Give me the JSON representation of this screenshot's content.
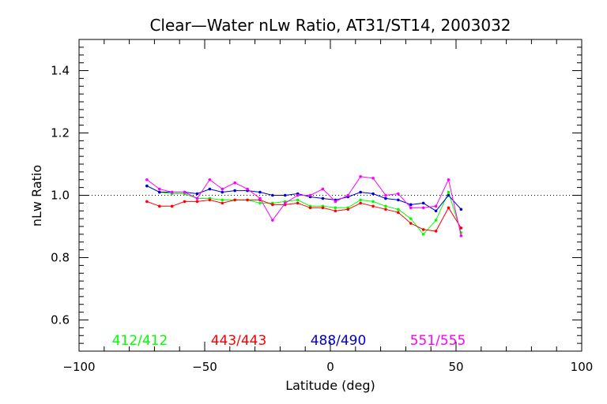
{
  "chart_data": {
    "type": "line",
    "title": "Clear—Water nLw Ratio, AT31/ST14, 2003032",
    "xlabel": "Latitude (deg)",
    "ylabel": "nLw Ratio",
    "xlim": [
      -100,
      100
    ],
    "ylim": [
      0.5,
      1.5
    ],
    "xticks": [
      -100,
      -50,
      0,
      50,
      100
    ],
    "yticks": [
      0.6,
      0.8,
      1.0,
      1.2,
      1.4
    ],
    "xtick_labels": [
      "−100",
      "−50",
      "0",
      "50",
      "100"
    ],
    "ytick_labels": [
      "0.6",
      "0.8",
      "1.0",
      "1.2",
      "1.4"
    ],
    "reference_line": {
      "y": 1.0,
      "style": "dotted"
    },
    "grid": false,
    "legend_placement": "bottom-inside",
    "series": [
      {
        "name": "412/412",
        "color": "#00ff00",
        "x": [
          -73,
          -68,
          -63,
          -58,
          -53,
          -48,
          -43,
          -38,
          -33,
          -28,
          -23,
          -18,
          -13,
          -8,
          -3,
          2,
          7,
          12,
          17,
          22,
          27,
          32,
          37,
          42,
          47,
          52
        ],
        "y": [
          1.03,
          1.01,
          1.005,
          1.005,
          0.99,
          0.99,
          0.985,
          0.985,
          0.985,
          0.975,
          0.975,
          0.98,
          0.985,
          0.965,
          0.965,
          0.96,
          0.96,
          0.985,
          0.98,
          0.965,
          0.955,
          0.925,
          0.875,
          0.92,
          1.01,
          0.88
        ]
      },
      {
        "name": "443/443",
        "color": "#ff0000",
        "x": [
          -73,
          -68,
          -63,
          -58,
          -53,
          -48,
          -43,
          -38,
          -33,
          -28,
          -23,
          -18,
          -13,
          -8,
          -3,
          2,
          7,
          12,
          17,
          22,
          27,
          32,
          37,
          42,
          47,
          52
        ],
        "y": [
          0.98,
          0.965,
          0.965,
          0.98,
          0.98,
          0.985,
          0.975,
          0.985,
          0.985,
          0.985,
          0.97,
          0.97,
          0.975,
          0.96,
          0.96,
          0.95,
          0.955,
          0.975,
          0.965,
          0.955,
          0.945,
          0.91,
          0.89,
          0.885,
          0.96,
          0.895
        ]
      },
      {
        "name": "488/490",
        "color": "#0000cc",
        "x": [
          -73,
          -68,
          -63,
          -58,
          -53,
          -48,
          -43,
          -38,
          -33,
          -28,
          -23,
          -18,
          -13,
          -8,
          -3,
          2,
          7,
          12,
          17,
          22,
          27,
          32,
          37,
          42,
          47,
          52
        ],
        "y": [
          1.03,
          1.01,
          1.01,
          1.01,
          1.005,
          1.02,
          1.01,
          1.015,
          1.015,
          1.01,
          1.0,
          1.0,
          1.005,
          0.995,
          0.99,
          0.985,
          0.995,
          1.01,
          1.005,
          0.99,
          0.985,
          0.97,
          0.975,
          0.95,
          1.0,
          0.955
        ]
      },
      {
        "name": "551/555",
        "color": "#ff00ff",
        "x": [
          -73,
          -68,
          -63,
          -58,
          -53,
          -48,
          -43,
          -38,
          -33,
          -28,
          -23,
          -18,
          -13,
          -8,
          -3,
          2,
          7,
          12,
          17,
          22,
          27,
          32,
          37,
          42,
          47,
          52
        ],
        "y": [
          1.05,
          1.02,
          1.01,
          1.01,
          0.99,
          1.05,
          1.02,
          1.04,
          1.02,
          0.99,
          0.92,
          0.975,
          1.0,
          1.0,
          1.02,
          0.98,
          1.0,
          1.06,
          1.055,
          1.0,
          1.005,
          0.96,
          0.96,
          0.965,
          1.05,
          0.87
        ]
      }
    ]
  }
}
